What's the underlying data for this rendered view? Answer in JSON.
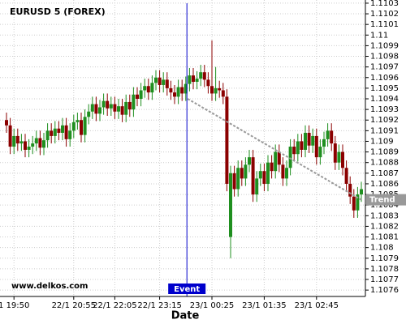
{
  "chart_data": {
    "type": "candlestick",
    "title": "EURUSD 5 (FOREX)",
    "watermark": "www.delkos.com",
    "x_label": "Date",
    "categories": [
      null,
      null,
      "1 19:50",
      null,
      null,
      null,
      null,
      null,
      null,
      null,
      null,
      null,
      null,
      null,
      null,
      null,
      null,
      null,
      "22/1 20:55",
      null,
      null,
      null,
      null,
      null,
      null,
      null,
      null,
      null,
      null,
      "22/1 22:05",
      null,
      null,
      null,
      null,
      null,
      null,
      null,
      null,
      null,
      null,
      null,
      "22/1 23:15",
      null,
      null,
      null,
      null,
      null,
      null,
      null,
      null,
      null,
      null,
      null,
      null,
      null,
      "23/1 00:25",
      null,
      null,
      null,
      null,
      null,
      null,
      null,
      null,
      null,
      null,
      null,
      null,
      null,
      "23/1 01:35",
      null,
      null,
      null,
      null,
      null,
      null,
      null,
      null,
      null,
      null,
      null,
      null,
      null,
      "23/1 02:45",
      null,
      null,
      null,
      null,
      null,
      null,
      null,
      null,
      null,
      null,
      null,
      null
    ],
    "open": [
      1.1092,
      1.10915,
      1.10895,
      1.10905,
      1.10898,
      1.109,
      1.10892,
      1.10895,
      1.10898,
      1.10903,
      1.10894,
      1.10901,
      1.1091,
      1.10905,
      1.10912,
      1.10908,
      1.10915,
      1.10902,
      1.1091,
      1.10918,
      1.1092,
      1.10906,
      1.10923,
      1.10928,
      1.10935,
      1.10926,
      1.10932,
      1.10938,
      1.10931,
      1.10935,
      1.10928,
      1.10933,
      1.10925,
      1.10937,
      1.1093,
      1.10944,
      1.1094,
      1.10948,
      1.10952,
      1.10946,
      1.10955,
      1.1096,
      1.10953,
      1.10958,
      1.1095,
      1.10946,
      1.10942,
      1.10951,
      1.10945,
      1.10954,
      1.10962,
      1.10956,
      1.10959,
      1.10965,
      1.10958,
      1.10952,
      1.10945,
      1.1095,
      1.10948,
      1.10942,
      1.1081,
      1.1087,
      1.10855,
      1.10875,
      1.10865,
      1.10878,
      1.10885,
      1.1085,
      1.10865,
      1.10872,
      1.1086,
      1.1088,
      1.10872,
      1.1089,
      1.10878,
      1.10865,
      1.10875,
      1.10895,
      1.10888,
      1.109,
      1.10892,
      1.10908,
      1.10896,
      1.10905,
      1.10885,
      1.10895,
      1.10902,
      1.1091,
      1.10898,
      1.1088,
      1.1089,
      1.10875,
      1.1086,
      1.10848,
      1.10835,
      1.1085
    ],
    "high": [
      1.10927,
      1.10922,
      1.10912,
      1.10912,
      1.10907,
      1.10907,
      1.10902,
      1.10905,
      1.1091,
      1.1091,
      1.10908,
      1.10917,
      1.10917,
      1.10919,
      1.10919,
      1.10922,
      1.10922,
      1.10917,
      1.10925,
      1.10927,
      1.10927,
      1.1093,
      1.10935,
      1.10942,
      1.10942,
      1.10939,
      1.10945,
      1.10945,
      1.10942,
      1.10942,
      1.1094,
      1.1094,
      1.10944,
      1.10944,
      1.10951,
      1.10951,
      1.10955,
      1.10959,
      1.10959,
      1.10962,
      1.10967,
      1.10967,
      1.10965,
      1.10965,
      1.10957,
      1.10953,
      1.10958,
      1.10958,
      1.10961,
      1.10969,
      1.10969,
      1.10966,
      1.10972,
      1.10972,
      1.10965,
      1.10995,
      1.1097,
      1.10957,
      1.10955,
      1.10949,
      1.10877,
      1.10877,
      1.10882,
      1.10882,
      1.10885,
      1.10892,
      1.10892,
      1.10872,
      1.10879,
      1.10879,
      1.10887,
      1.10887,
      1.10897,
      1.10897,
      1.10885,
      1.10882,
      1.10902,
      1.10902,
      1.10907,
      1.10907,
      1.10915,
      1.10915,
      1.10912,
      1.10912,
      1.10902,
      1.10909,
      1.10917,
      1.10917,
      1.10905,
      1.10897,
      1.10897,
      1.10882,
      1.10867,
      1.10855,
      1.10857,
      1.10862
    ],
    "low": [
      1.10908,
      1.10888,
      1.10888,
      1.10891,
      1.10891,
      1.10885,
      1.10885,
      1.10888,
      1.10891,
      1.10887,
      1.10887,
      1.10894,
      1.10898,
      1.10898,
      1.10901,
      1.10901,
      1.10895,
      1.10895,
      1.10903,
      1.10911,
      1.10899,
      1.10899,
      1.10916,
      1.10921,
      1.10919,
      1.10919,
      1.10925,
      1.10924,
      1.10924,
      1.10921,
      1.10921,
      1.10918,
      1.10918,
      1.10923,
      1.10923,
      1.10933,
      1.10933,
      1.10941,
      1.10939,
      1.10939,
      1.10948,
      1.10946,
      1.10946,
      1.10943,
      1.10939,
      1.10935,
      1.10935,
      1.10938,
      1.10938,
      1.10947,
      1.10949,
      1.10949,
      1.10952,
      1.10951,
      1.10945,
      1.10938,
      1.10938,
      1.10941,
      1.10935,
      1.10853,
      1.1079,
      1.10848,
      1.10848,
      1.10858,
      1.10858,
      1.10871,
      1.10843,
      1.10843,
      1.10858,
      1.10853,
      1.10853,
      1.10865,
      1.10865,
      1.10871,
      1.10858,
      1.10858,
      1.10868,
      1.10881,
      1.10881,
      1.10885,
      1.10885,
      1.10889,
      1.10889,
      1.10878,
      1.10878,
      1.10888,
      1.10895,
      1.10891,
      1.10873,
      1.10873,
      1.10868,
      1.10853,
      1.10841,
      1.10828,
      1.10828,
      1.10843
    ],
    "close": [
      1.10915,
      1.10895,
      1.10905,
      1.10898,
      1.109,
      1.10892,
      1.10895,
      1.10898,
      1.10903,
      1.10894,
      1.10901,
      1.1091,
      1.10905,
      1.10912,
      1.10908,
      1.10915,
      1.10902,
      1.1091,
      1.10918,
      1.1092,
      1.10906,
      1.10923,
      1.10928,
      1.10935,
      1.10926,
      1.10932,
      1.10938,
      1.10931,
      1.10935,
      1.10928,
      1.10933,
      1.10925,
      1.10937,
      1.1093,
      1.10944,
      1.1094,
      1.10948,
      1.10952,
      1.10946,
      1.10955,
      1.1096,
      1.10953,
      1.10958,
      1.1095,
      1.10946,
      1.10942,
      1.10951,
      1.10945,
      1.10954,
      1.10962,
      1.10956,
      1.10959,
      1.10965,
      1.10958,
      1.10952,
      1.10945,
      1.1095,
      1.10948,
      1.10942,
      1.1086,
      1.1087,
      1.10855,
      1.10875,
      1.10865,
      1.10878,
      1.10885,
      1.1085,
      1.10865,
      1.10872,
      1.1086,
      1.1088,
      1.10872,
      1.1089,
      1.10878,
      1.10865,
      1.10875,
      1.10895,
      1.10888,
      1.109,
      1.10892,
      1.10908,
      1.10896,
      1.10905,
      1.10885,
      1.10895,
      1.10902,
      1.1091,
      1.10898,
      1.1088,
      1.1089,
      1.10875,
      1.1086,
      1.10848,
      1.10835,
      1.1085,
      1.10855
    ],
    "up_color": "#1f8f1f",
    "down_color": "#8b0000",
    "ylim": [
      1.10754,
      1.11033
    ],
    "yticks": [
      1.1076,
      1.1077,
      1.1078,
      1.1079,
      1.108,
      1.1081,
      1.1082,
      1.1083,
      1.1084,
      1.1085,
      1.1086,
      1.1087,
      1.1088,
      1.1089,
      1.109,
      1.1091,
      1.1092,
      1.1093,
      1.1094,
      1.1095,
      1.1096,
      1.1097,
      1.1098,
      1.1099,
      1.11,
      1.1101,
      1.1102,
      1.1103
    ],
    "grid": true,
    "event": {
      "label": "Event",
      "x": 48.3,
      "color": "#0000cc"
    },
    "trend": {
      "label": "Trend",
      "x": [
        48.5,
        95
      ],
      "y": [
        1.1094,
        1.10845
      ],
      "color": "#999999"
    }
  }
}
